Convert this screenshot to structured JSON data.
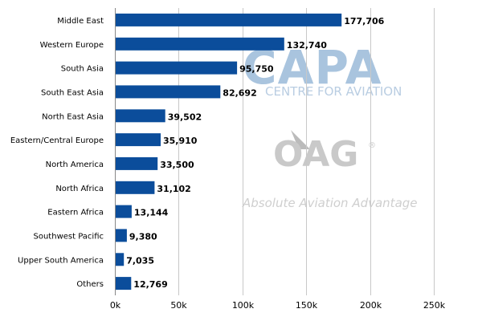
{
  "watermarks": {
    "capa_logo": "CAPA",
    "capa_tagline": "CENTRE FOR AVIATION",
    "oag_logo": "OAG",
    "oag_reg": "®",
    "oag_tagline": "Absolute Aviation Advantage"
  },
  "colors": {
    "bar": "#0b4d9b",
    "grid": "#c8c8c8"
  },
  "chart_data": {
    "type": "bar",
    "orientation": "horizontal",
    "title": "",
    "xlabel": "",
    "ylabel": "",
    "categories": [
      "Middle East",
      "Western Europe",
      "South Asia",
      "South East Asia",
      "North East Asia",
      "Eastern/Central Europe",
      "North America",
      "North Africa",
      "Eastern Africa",
      "Southwest Pacific",
      "Upper South America",
      "Others"
    ],
    "values": [
      177706,
      132740,
      95750,
      82692,
      39502,
      35910,
      33500,
      31102,
      13144,
      9380,
      7035,
      12769
    ],
    "value_labels": [
      "177,706",
      "132,740",
      "95,750",
      "82,692",
      "39,502",
      "35,910",
      "33,500",
      "31,102",
      "13,144",
      "9,380",
      "7,035",
      "12,769"
    ],
    "xlim": [
      0,
      250000
    ],
    "xticks": [
      0,
      50000,
      100000,
      150000,
      200000,
      250000
    ],
    "xtick_labels": [
      "0k",
      "50k",
      "100k",
      "150k",
      "200k",
      "250k"
    ],
    "grid": true,
    "legend": "none"
  }
}
